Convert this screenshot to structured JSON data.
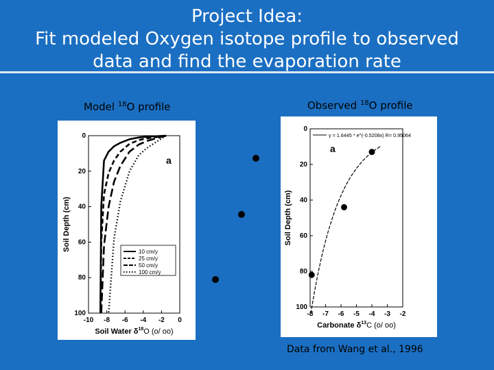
{
  "slide": {
    "title_line1": "Project Idea:",
    "title_line2": "Fit modeled Oxygen isotope profile to observed",
    "title_line3": "data and find the evaporation rate",
    "left_caption_pre": "Model ",
    "left_caption_sup": "18",
    "left_caption_post": "O profile",
    "right_caption_pre": "Observed ",
    "right_caption_sup": "18",
    "right_caption_post": "O profile",
    "source_note": "Data from Wang et al., 1996"
  },
  "chart_data": [
    {
      "type": "line",
      "panel_label": "a",
      "xlabel": "Soil Water δ18O (o/ oo)",
      "xlabel_main": "Soil Water δ",
      "xlabel_sup": "18",
      "xlabel_rest": "O (o/ oo)",
      "ylabel": "Soil Depth (cm)",
      "xlim": [
        -10,
        0
      ],
      "ylim": [
        100,
        0
      ],
      "xticks": [
        -10,
        -8,
        -6,
        -4,
        -2,
        0
      ],
      "yticks": [
        0,
        20,
        40,
        60,
        80,
        100
      ],
      "grid": false,
      "legend_position": "bottom-right",
      "legend": [
        "10 cm/y",
        "25 cm/y",
        "50 cm/y",
        "100 cm/y"
      ],
      "series": [
        {
          "name": "10 cm/y",
          "style": "solid",
          "k": 3,
          "x": [
            -1.5,
            -2.6,
            -3.6,
            -4.5,
            -5.5,
            -6.5,
            -7.2,
            -7.8,
            -8.3,
            -8.6,
            -8.7
          ],
          "y": [
            0,
            0.3,
            0.6,
            1,
            2,
            4,
            6,
            9,
            14,
            40,
            100
          ]
        },
        {
          "name": "25 cm/y",
          "style": "dashed",
          "k": 7,
          "x": [
            -1.5,
            -2.6,
            -3.6,
            -4.5,
            -5.5,
            -6.5,
            -7.2,
            -7.8,
            -8.3,
            -8.6,
            -8.7
          ],
          "y": [
            0,
            0.8,
            1.5,
            2.5,
            4.6,
            9,
            14,
            21,
            33,
            60,
            100
          ]
        },
        {
          "name": "50 cm/y",
          "style": "longdash",
          "k": 14,
          "x": [
            -1.5,
            -2.6,
            -3.6,
            -4.5,
            -5.5,
            -6.5,
            -7.2,
            -7.8,
            -8.3,
            -8.6,
            -8.7
          ],
          "y": [
            0,
            1.5,
            3,
            5,
            9,
            17,
            26,
            40,
            62,
            100,
            100
          ]
        },
        {
          "name": "100 cm/y",
          "style": "dotted",
          "k": 32,
          "x": [
            -1.5,
            -2.6,
            -3.6,
            -4.5,
            -5.5,
            -6.5,
            -7.2,
            -7.8
          ],
          "y": [
            0,
            3.6,
            7,
            11,
            20,
            37,
            58,
            100
          ]
        }
      ]
    },
    {
      "type": "scatter",
      "panel_label": "a",
      "xlabel": "Carbonate δ13C (o/ oo)",
      "xlabel_main": "Carbonate δ",
      "xlabel_sup": "13",
      "xlabel_rest": "C (o/ oo)",
      "ylabel": "Soil Depth (cm)",
      "xlim": [
        -8,
        -2
      ],
      "ylim": [
        100,
        0
      ],
      "xticks": [
        -8,
        -7,
        -6,
        -5,
        -4,
        -3,
        -2
      ],
      "yticks": [
        0,
        20,
        40,
        60,
        80,
        100
      ],
      "grid": false,
      "fit_equation": "y = 1.6445 * e^(-0.5208x)   R= 0.95064",
      "fit": {
        "a": 1.6445,
        "b": -0.5208
      },
      "points": [
        {
          "x": -4.0,
          "y": 13
        },
        {
          "x": -5.8,
          "y": 44
        },
        {
          "x": -7.9,
          "y": 82
        }
      ]
    }
  ],
  "stray_points": [
    {
      "x": -4.7,
      "y": 13
    },
    {
      "x": -5.2,
      "y": 45
    },
    {
      "x": -6.2,
      "y": 82
    }
  ]
}
